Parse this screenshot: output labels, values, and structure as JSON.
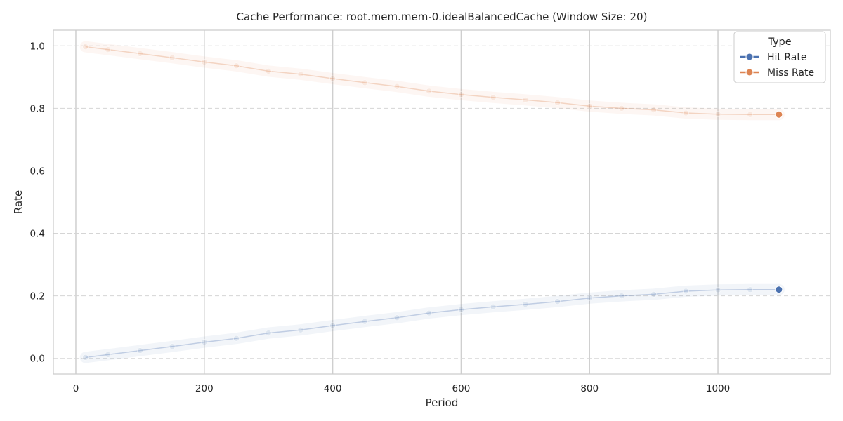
{
  "chart_data": {
    "type": "line",
    "title": "Cache Performance: root.mem.mem-0.idealBalancedCache (Window Size: 20)",
    "xlabel": "Period",
    "ylabel": "Rate",
    "xlim": [
      -35,
      1175
    ],
    "ylim": [
      -0.05,
      1.05
    ],
    "xticks": [
      0,
      200,
      400,
      600,
      800,
      1000
    ],
    "yticks": [
      0.0,
      0.2,
      0.4,
      0.6,
      0.8,
      1.0
    ],
    "xtick_labels": [
      "0",
      "200",
      "400",
      "600",
      "800",
      "1000"
    ],
    "ytick_labels": [
      "0.0",
      "0.2",
      "0.4",
      "0.6",
      "0.8",
      "1.0"
    ],
    "grid": {
      "vertical": "solid",
      "horizontal": "dashed"
    },
    "legend": {
      "title": "Type",
      "position": "top-right",
      "entries": [
        "Hit Rate",
        "Miss Rate"
      ]
    },
    "series": [
      {
        "name": "Hit Rate",
        "color": "#4c72b0",
        "x": [
          15,
          50,
          100,
          150,
          200,
          250,
          300,
          350,
          400,
          450,
          500,
          550,
          600,
          650,
          700,
          750,
          800,
          850,
          900,
          950,
          1000,
          1050,
          1095
        ],
        "y": [
          0.003,
          0.012,
          0.025,
          0.038,
          0.052,
          0.064,
          0.081,
          0.091,
          0.105,
          0.118,
          0.13,
          0.145,
          0.156,
          0.165,
          0.173,
          0.182,
          0.193,
          0.2,
          0.205,
          0.215,
          0.219,
          0.22,
          0.22
        ]
      },
      {
        "name": "Miss Rate",
        "color": "#dd8452",
        "x": [
          15,
          50,
          100,
          150,
          200,
          250,
          300,
          350,
          400,
          450,
          500,
          550,
          600,
          650,
          700,
          750,
          800,
          850,
          900,
          950,
          1000,
          1050,
          1095
        ],
        "y": [
          0.997,
          0.988,
          0.975,
          0.962,
          0.948,
          0.936,
          0.919,
          0.909,
          0.895,
          0.882,
          0.87,
          0.855,
          0.844,
          0.835,
          0.827,
          0.818,
          0.807,
          0.8,
          0.795,
          0.785,
          0.781,
          0.78,
          0.78
        ]
      }
    ]
  }
}
